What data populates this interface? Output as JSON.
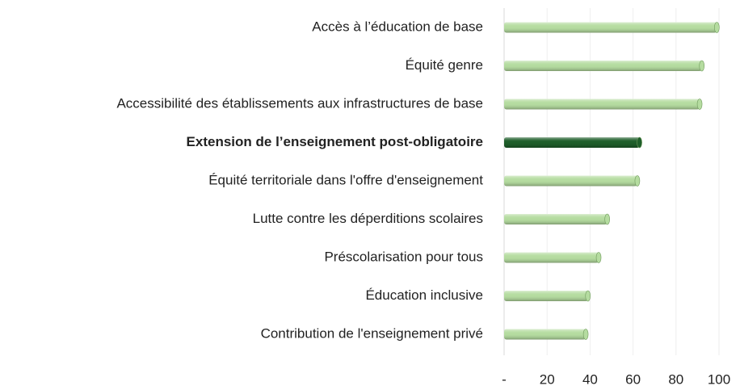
{
  "chart_data": {
    "type": "bar",
    "orientation": "horizontal",
    "categories": [
      "Accès à l’éducation de base",
      "Équité genre",
      "Accessibilité des établissements aux infrastructures de base",
      "Extension de l’enseignement post-obligatoire",
      "Équité territoriale dans l'offre d'enseignement",
      "Lutte contre les déperditions scolaires",
      "Préscolarisation pour tous",
      "Éducation inclusive",
      "Contribution de l'enseignement privé"
    ],
    "values": [
      99,
      92,
      91,
      63,
      62,
      48,
      44,
      39,
      38
    ],
    "colors": [
      "#b5dca0",
      "#b5dca0",
      "#b5dca0",
      "#1e5e2a",
      "#b5dca0",
      "#b5dca0",
      "#b5dca0",
      "#b5dca0",
      "#b5dca0"
    ],
    "label_weights": [
      "normal",
      "normal",
      "normal",
      "bold",
      "normal",
      "normal",
      "normal",
      "normal",
      "normal"
    ],
    "xlim": [
      0,
      100
    ],
    "xticks": [
      {
        "value": 0,
        "label": "-"
      },
      20,
      40,
      60,
      80,
      100
    ],
    "grid": true
  }
}
